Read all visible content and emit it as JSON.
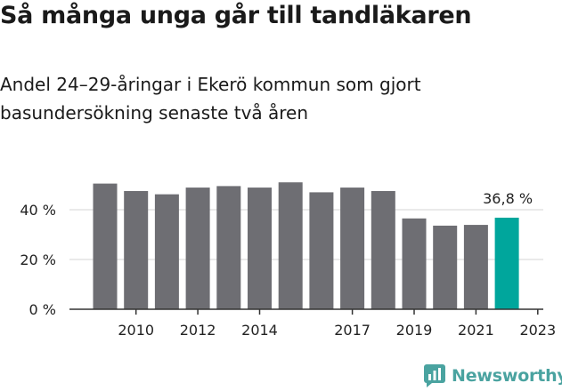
{
  "header": {
    "title": "Så många unga går till tandläkaren",
    "subtitle": "Andel 24–29-åringar i Ekerö kommun som gjort basundersökning senaste två åren"
  },
  "brand": {
    "name": "Newsworthy",
    "icon": "newsworthy-logo-icon",
    "color": "#4aa3a0"
  },
  "chart_data": {
    "type": "bar",
    "x": [
      2009,
      2010,
      2011,
      2012,
      2013,
      2014,
      2015,
      2016,
      2017,
      2018,
      2019,
      2020,
      2021,
      2022,
      2023
    ],
    "values": [
      50.5,
      47.5,
      46.2,
      48.9,
      49.5,
      48.9,
      51.0,
      47.0,
      48.9,
      47.5,
      36.5,
      33.6,
      33.9,
      36.8,
      null
    ],
    "ylim": [
      0,
      60
    ],
    "yticks": [
      0,
      20,
      40
    ],
    "ytick_labels": [
      "0 %",
      "20 %",
      "40 %"
    ],
    "xtick_years": [
      2010,
      2012,
      2014,
      2017,
      2019,
      2021,
      2023
    ],
    "highlight_label": "36,8 %",
    "colors": {
      "bar": "#6e6e73",
      "highlight": "#00a69c",
      "grid": "#d6d6d6",
      "axis": "#333333"
    },
    "grid": true
  }
}
